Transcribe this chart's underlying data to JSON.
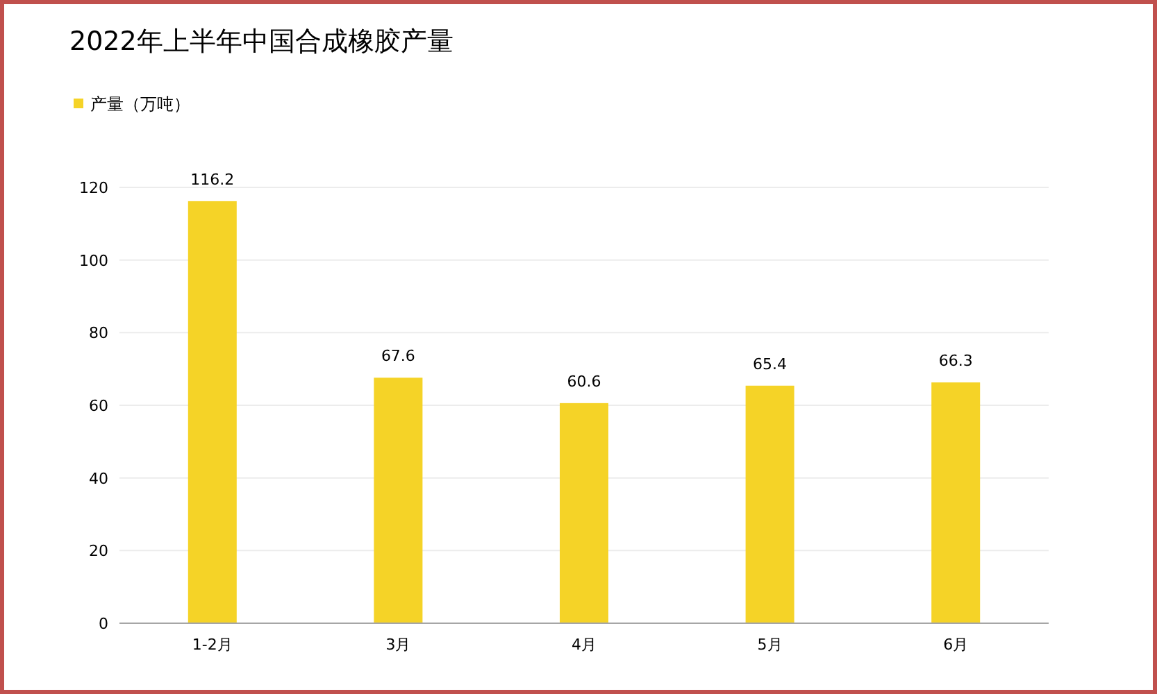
{
  "chart_data": {
    "type": "bar",
    "title": "2022年上半年中国合成橡胶产量",
    "categories": [
      "1-2月",
      "3月",
      "4月",
      "5月",
      "6月"
    ],
    "series": [
      {
        "name": "产量（万吨）",
        "color": "#f5d327",
        "values": [
          116.2,
          67.6,
          60.6,
          65.4,
          66.3
        ]
      }
    ],
    "ylim": [
      0,
      120
    ],
    "yticks": [
      0,
      20,
      40,
      60,
      80,
      100,
      120
    ],
    "grid": "y",
    "legend": "top left",
    "data_labels": true
  }
}
